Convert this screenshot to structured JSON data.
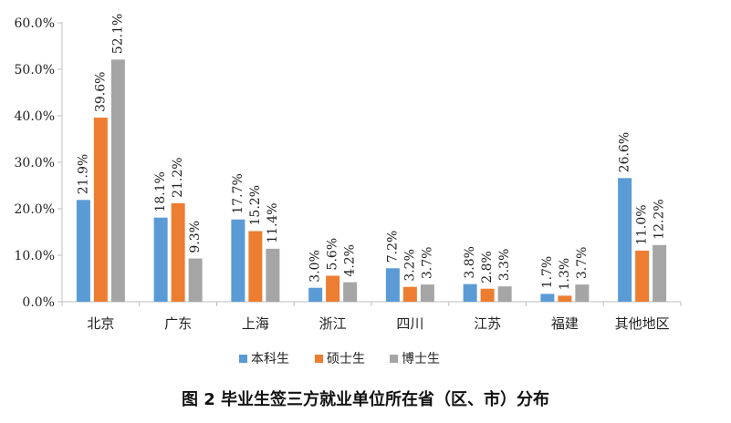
{
  "caption": "图 2 毕业生签三方就业单位所在省（区、市）分布",
  "chart_data": {
    "type": "bar",
    "categories": [
      "北京",
      "广东",
      "上海",
      "浙江",
      "四川",
      "江苏",
      "福建",
      "其他地区"
    ],
    "series": [
      {
        "name": "本科生",
        "color": "#5b9bd5",
        "values": [
          21.9,
          18.1,
          17.7,
          3.0,
          7.2,
          3.8,
          1.7,
          26.6
        ],
        "labels": [
          "21.9%",
          "18.1%",
          "17.7%",
          "3.0%",
          "7.2%",
          "3.8%",
          "1.7%",
          "26.6%"
        ]
      },
      {
        "name": "硕士生",
        "color": "#ed7d31",
        "values": [
          39.6,
          21.2,
          15.2,
          5.6,
          3.2,
          2.8,
          1.3,
          11.0
        ],
        "labels": [
          "39.6%",
          "21.2%",
          "15.2%",
          "5.6%",
          "3.2%",
          "2.8%",
          "1.3%",
          "11.0%"
        ]
      },
      {
        "name": "博士生",
        "color": "#a5a5a5",
        "values": [
          52.1,
          9.3,
          11.4,
          4.2,
          3.7,
          3.3,
          3.7,
          12.2
        ],
        "labels": [
          "52.1%",
          "9.3%",
          "11.4%",
          "4.2%",
          "3.7%",
          "3.3%",
          "3.7%",
          "12.2%"
        ]
      }
    ],
    "ylim": [
      0,
      60
    ],
    "yticks": [
      0,
      10,
      20,
      30,
      40,
      50,
      60
    ],
    "ytick_labels": [
      "0.0%",
      "10.0%",
      "20.0%",
      "30.0%",
      "40.0%",
      "50.0%",
      "60.0%"
    ],
    "grid": false,
    "legend": "bottom",
    "data_labels": "rotated"
  }
}
